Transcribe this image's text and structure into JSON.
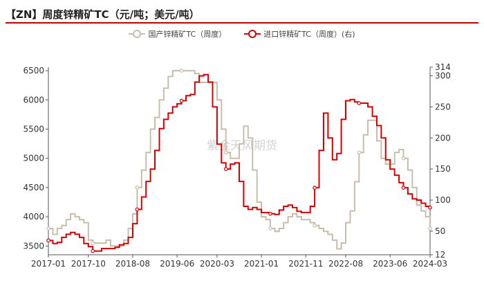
{
  "header": {
    "title": "【ZN】周度锌精矿TC（元/吨；美元/吨）"
  },
  "watermark": "紫金天风期货",
  "colors": {
    "domestic": "#c8bcaa",
    "imported": "#d40000",
    "rule": "#c00000"
  },
  "chart_data": {
    "type": "line",
    "x_ticks": [
      "2017-01",
      "2017-10",
      "2018-08",
      "2019-06",
      "2020-03",
      "2021-01",
      "2021-11",
      "2022-08",
      "2023-06",
      "2024-03"
    ],
    "y_left": {
      "lim": [
        3350,
        6560
      ],
      "ticks": [
        3500,
        4000,
        4500,
        5000,
        5500,
        6000,
        6500
      ]
    },
    "y_right": {
      "lim": [
        12,
        314
      ],
      "ticks": [
        12,
        50,
        100,
        150,
        200,
        250,
        300,
        314
      ]
    },
    "grid": false,
    "legend": "top-center",
    "series": [
      {
        "name": "国产锌精矿TC（周度）",
        "axis": "left",
        "x": [
          "2017-01",
          "2017-02",
          "2017-03",
          "2017-04",
          "2017-05",
          "2017-06",
          "2017-07",
          "2017-08",
          "2017-09",
          "2017-10",
          "2017-11",
          "2017-12",
          "2018-01",
          "2018-02",
          "2018-03",
          "2018-04",
          "2018-05",
          "2018-06",
          "2018-07",
          "2018-08",
          "2018-09",
          "2018-10",
          "2018-11",
          "2018-12",
          "2019-01",
          "2019-02",
          "2019-03",
          "2019-04",
          "2019-05",
          "2019-06",
          "2019-07",
          "2019-08",
          "2019-09",
          "2019-10",
          "2019-11",
          "2019-12",
          "2020-01",
          "2020-02",
          "2020-03",
          "2020-04",
          "2020-05",
          "2020-06",
          "2020-07",
          "2020-08",
          "2020-09",
          "2020-10",
          "2020-11",
          "2020-12",
          "2021-01",
          "2021-02",
          "2021-03",
          "2021-04",
          "2021-05",
          "2021-06",
          "2021-07",
          "2021-08",
          "2021-09",
          "2021-10",
          "2021-11",
          "2021-12",
          "2022-01",
          "2022-02",
          "2022-03",
          "2022-04",
          "2022-05",
          "2022-06",
          "2022-07",
          "2022-08",
          "2022-09",
          "2022-10",
          "2022-11",
          "2022-12",
          "2023-01",
          "2023-02",
          "2023-03",
          "2023-04",
          "2023-05",
          "2023-06",
          "2023-07",
          "2023-08",
          "2023-09",
          "2023-10",
          "2023-11",
          "2023-12",
          "2024-01",
          "2024-02",
          "2024-03"
        ],
        "values": [
          3800,
          3700,
          3800,
          3850,
          3950,
          4050,
          4000,
          3950,
          3900,
          3600,
          3550,
          3550,
          3550,
          3600,
          3500,
          3500,
          3500,
          3600,
          3800,
          4050,
          4500,
          4800,
          5100,
          5500,
          5700,
          6000,
          6200,
          6400,
          6500,
          6500,
          6500,
          6500,
          6500,
          6450,
          6300,
          6300,
          6300,
          6300,
          6000,
          5500,
          5100,
          5000,
          5000,
          5250,
          5550,
          5350,
          4800,
          4250,
          4000,
          3950,
          3800,
          3750,
          3800,
          3900,
          4000,
          4050,
          4000,
          3950,
          3950,
          3900,
          3850,
          3800,
          3750,
          3700,
          3600,
          3450,
          3550,
          3900,
          4100,
          4600,
          5100,
          5400,
          5650,
          5650,
          5300,
          5000,
          4900,
          4900,
          5100,
          5150,
          5000,
          4800,
          4500,
          4200,
          4100,
          4000,
          3800
        ]
      },
      {
        "name": "进口锌精矿TC（周度）(右)",
        "axis": "right",
        "x": [
          "2017-01",
          "2017-02",
          "2017-03",
          "2017-04",
          "2017-05",
          "2017-06",
          "2017-07",
          "2017-08",
          "2017-09",
          "2017-10",
          "2017-11",
          "2017-12",
          "2018-01",
          "2018-02",
          "2018-03",
          "2018-04",
          "2018-05",
          "2018-06",
          "2018-07",
          "2018-08",
          "2018-09",
          "2018-10",
          "2018-11",
          "2018-12",
          "2019-01",
          "2019-02",
          "2019-03",
          "2019-04",
          "2019-05",
          "2019-06",
          "2019-07",
          "2019-08",
          "2019-09",
          "2019-10",
          "2019-11",
          "2019-12",
          "2020-01",
          "2020-02",
          "2020-03",
          "2020-04",
          "2020-05",
          "2020-06",
          "2020-07",
          "2020-08",
          "2020-09",
          "2020-10",
          "2020-11",
          "2020-12",
          "2021-01",
          "2021-02",
          "2021-03",
          "2021-04",
          "2021-05",
          "2021-06",
          "2021-07",
          "2021-08",
          "2021-09",
          "2021-10",
          "2021-11",
          "2021-12",
          "2022-01",
          "2022-02",
          "2022-03",
          "2022-04",
          "2022-05",
          "2022-06",
          "2022-07",
          "2022-08",
          "2022-09",
          "2022-10",
          "2022-11",
          "2022-12",
          "2023-01",
          "2023-02",
          "2023-03",
          "2023-04",
          "2023-05",
          "2023-06",
          "2023-07",
          "2023-08",
          "2023-09",
          "2023-10",
          "2023-11",
          "2023-12",
          "2024-01",
          "2024-02",
          "2024-03"
        ],
        "values": [
          35,
          30,
          32,
          40,
          45,
          48,
          45,
          40,
          30,
          25,
          18,
          18,
          22,
          22,
          22,
          24,
          28,
          30,
          40,
          62,
          85,
          105,
          130,
          150,
          180,
          215,
          230,
          240,
          250,
          255,
          260,
          268,
          270,
          290,
          300,
          302,
          290,
          250,
          190,
          160,
          150,
          158,
          160,
          130,
          90,
          85,
          88,
          85,
          80,
          80,
          78,
          77,
          84,
          90,
          92,
          88,
          82,
          80,
          80,
          90,
          120,
          180,
          240,
          200,
          165,
          175,
          230,
          260,
          262,
          258,
          256,
          256,
          250,
          235,
          220,
          200,
          165,
          150,
          140,
          128,
          120,
          110,
          102,
          100,
          95,
          90,
          88
        ]
      }
    ]
  }
}
